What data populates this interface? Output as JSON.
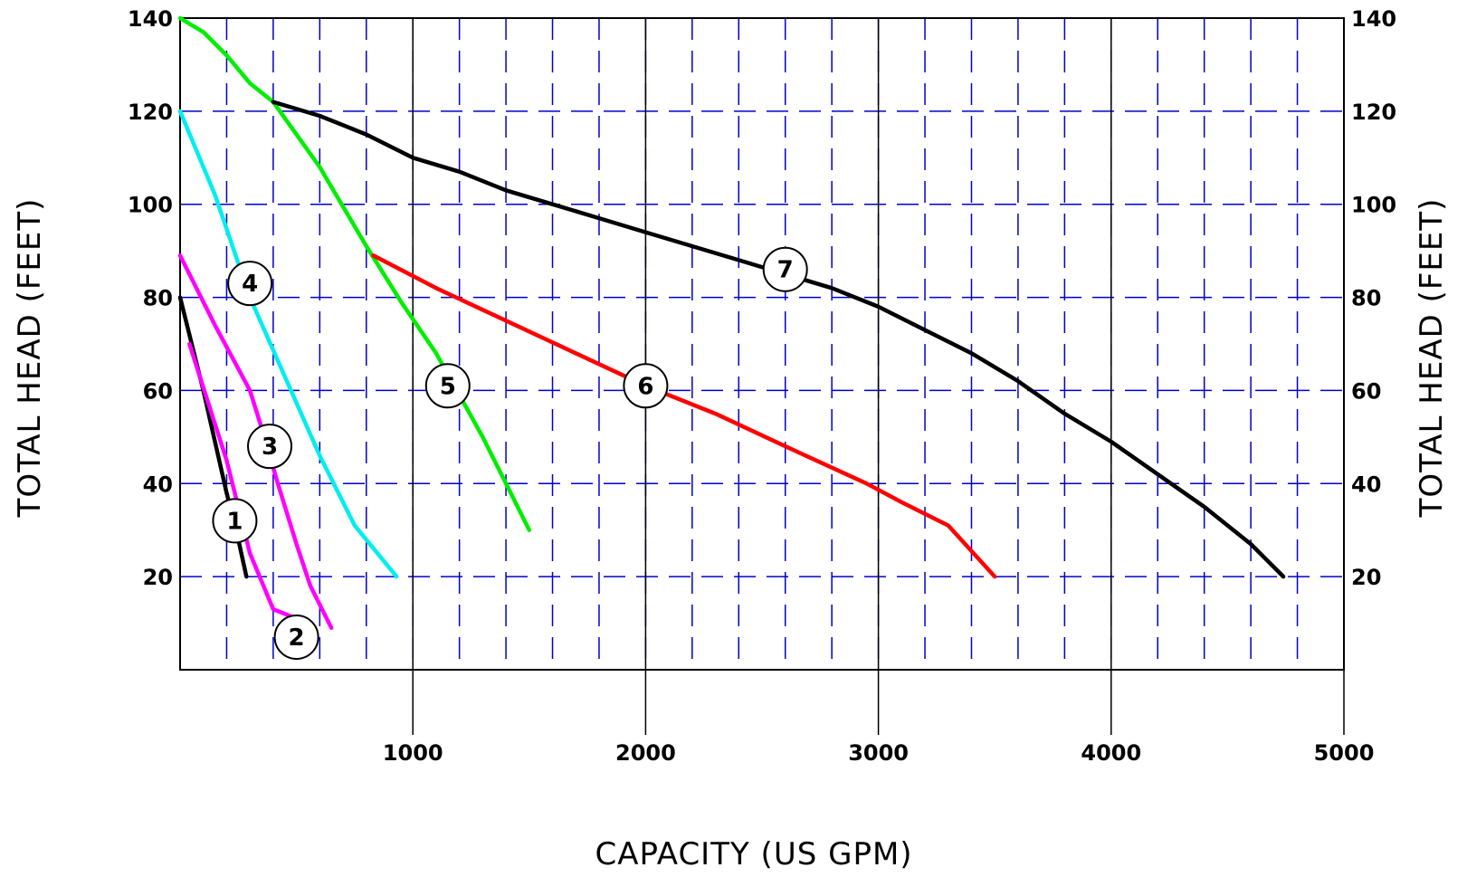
{
  "chart_data": {
    "type": "line",
    "xlabel": "CAPACITY (US GPM)",
    "ylabel_left": "TOTAL HEAD (FEET)",
    "ylabel_right": "TOTAL HEAD (FEET)",
    "xlim": [
      0,
      5000
    ],
    "ylim": [
      0,
      140
    ],
    "x_ticks": [
      {
        "value": 1000,
        "label": "1000"
      },
      {
        "value": 2000,
        "label": "2000"
      },
      {
        "value": 3000,
        "label": "3000"
      },
      {
        "value": 4000,
        "label": "4000"
      },
      {
        "value": 5000,
        "label": "5000"
      }
    ],
    "y_ticks": [
      {
        "value": 20,
        "label": "20"
      },
      {
        "value": 40,
        "label": "40"
      },
      {
        "value": 60,
        "label": "60"
      },
      {
        "value": 80,
        "label": "80"
      },
      {
        "value": 100,
        "label": "100"
      },
      {
        "value": 120,
        "label": "120"
      },
      {
        "value": 140,
        "label": "140"
      }
    ],
    "grid": {
      "x_step": 200,
      "y_step": 20,
      "style": "dashed",
      "color": "#0000cc"
    },
    "series": [
      {
        "label": "1",
        "color": "#000000",
        "label_at": [
          235,
          32
        ],
        "points": [
          [
            0,
            80
          ],
          [
            100,
            60
          ],
          [
            200,
            38
          ],
          [
            250,
            28
          ],
          [
            285,
            20
          ]
        ]
      },
      {
        "label": "2",
        "color": "#ff00ff",
        "label_at": [
          500,
          7
        ],
        "points": [
          [
            40,
            70
          ],
          [
            200,
            45
          ],
          [
            300,
            25
          ],
          [
            400,
            13
          ],
          [
            500,
            11
          ]
        ]
      },
      {
        "label": "3",
        "color": "#ff00ff",
        "label_at": [
          385,
          48
        ],
        "points": [
          [
            0,
            89
          ],
          [
            150,
            74
          ],
          [
            300,
            60
          ],
          [
            350,
            52
          ],
          [
            420,
            40
          ],
          [
            500,
            27
          ],
          [
            560,
            18
          ],
          [
            650,
            9
          ]
        ]
      },
      {
        "label": "4",
        "color": "#00eeee",
        "label_at": [
          300,
          83
        ],
        "points": [
          [
            0,
            120
          ],
          [
            150,
            102
          ],
          [
            300,
            80
          ],
          [
            450,
            63
          ],
          [
            600,
            46
          ],
          [
            750,
            31
          ],
          [
            930,
            20
          ]
        ]
      },
      {
        "label": "5",
        "color": "#00ee00",
        "label_at": [
          1150,
          61
        ],
        "points": [
          [
            0,
            140
          ],
          [
            100,
            137
          ],
          [
            200,
            132
          ],
          [
            300,
            126
          ],
          [
            400,
            122
          ],
          [
            500,
            115
          ],
          [
            600,
            108
          ],
          [
            800,
            91
          ],
          [
            950,
            79
          ],
          [
            1100,
            68
          ],
          [
            1300,
            50
          ],
          [
            1400,
            40
          ],
          [
            1500,
            30
          ]
        ]
      },
      {
        "label": "6",
        "color": "#ff0000",
        "label_at": [
          2000,
          61
        ],
        "points": [
          [
            830,
            89
          ],
          [
            1100,
            82
          ],
          [
            1400,
            75
          ],
          [
            1700,
            68
          ],
          [
            2000,
            61
          ],
          [
            2300,
            55
          ],
          [
            2600,
            48
          ],
          [
            2950,
            40
          ],
          [
            3100,
            36
          ],
          [
            3300,
            31
          ],
          [
            3500,
            20
          ]
        ]
      },
      {
        "label": "7",
        "color": "#000000",
        "label_at": [
          2600,
          86
        ],
        "points": [
          [
            400,
            122
          ],
          [
            600,
            119
          ],
          [
            800,
            115
          ],
          [
            1000,
            110
          ],
          [
            1200,
            107
          ],
          [
            1400,
            103
          ],
          [
            1600,
            100
          ],
          [
            1800,
            97
          ],
          [
            2000,
            94
          ],
          [
            2200,
            91
          ],
          [
            2400,
            88
          ],
          [
            2600,
            85
          ],
          [
            2800,
            82
          ],
          [
            3000,
            78
          ],
          [
            3200,
            73
          ],
          [
            3400,
            68
          ],
          [
            3600,
            62
          ],
          [
            3800,
            55
          ],
          [
            4000,
            49
          ],
          [
            4200,
            42
          ],
          [
            4400,
            35
          ],
          [
            4600,
            27
          ],
          [
            4740,
            20
          ]
        ]
      }
    ]
  }
}
